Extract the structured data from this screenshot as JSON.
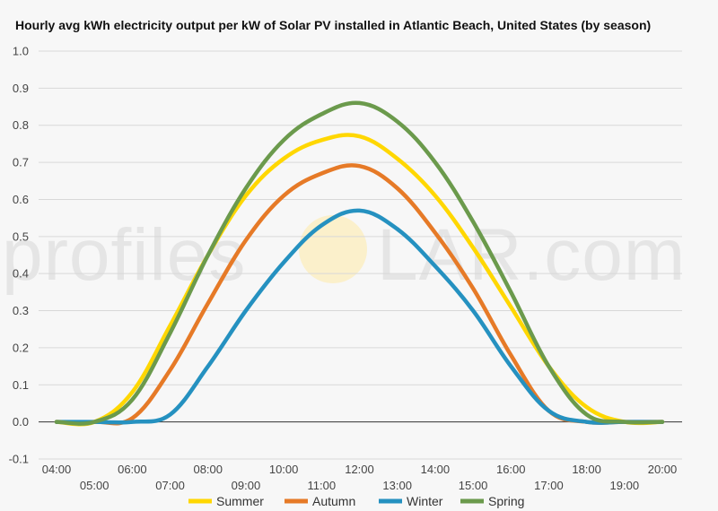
{
  "chart_data": {
    "type": "line",
    "title": "Hourly avg kWh electricity output per kW of Solar PV installed in Atlantic Beach, United States (by season)",
    "xlabel": "",
    "ylabel": "",
    "ylim": [
      -0.1,
      1.0
    ],
    "yticks": [
      "-0.1",
      "0.0",
      "0.1",
      "0.2",
      "0.3",
      "0.4",
      "0.5",
      "0.6",
      "0.7",
      "0.8",
      "0.9",
      "1.0"
    ],
    "x": [
      "04:00",
      "05:00",
      "06:00",
      "07:00",
      "08:00",
      "09:00",
      "10:00",
      "11:00",
      "12:00",
      "13:00",
      "14:00",
      "15:00",
      "16:00",
      "17:00",
      "18:00",
      "19:00",
      "20:00"
    ],
    "grid": true,
    "legend_position": "bottom",
    "series": [
      {
        "name": "Summer",
        "color": "#ffd700",
        "values": [
          0.0,
          0.0,
          0.08,
          0.26,
          0.45,
          0.61,
          0.71,
          0.76,
          0.77,
          0.71,
          0.61,
          0.47,
          0.31,
          0.15,
          0.04,
          0.0,
          0.0
        ]
      },
      {
        "name": "Autumn",
        "color": "#e67a27",
        "values": [
          0.0,
          0.0,
          0.01,
          0.14,
          0.32,
          0.49,
          0.61,
          0.67,
          0.69,
          0.63,
          0.51,
          0.36,
          0.18,
          0.03,
          0.0,
          0.0,
          0.0
        ]
      },
      {
        "name": "Winter",
        "color": "#2591c0",
        "values": [
          0.0,
          0.0,
          0.0,
          0.02,
          0.15,
          0.3,
          0.43,
          0.53,
          0.57,
          0.52,
          0.42,
          0.3,
          0.15,
          0.03,
          0.0,
          0.0,
          0.0
        ]
      },
      {
        "name": "Spring",
        "color": "#6b9a4c",
        "values": [
          0.0,
          0.0,
          0.06,
          0.24,
          0.45,
          0.63,
          0.76,
          0.83,
          0.86,
          0.81,
          0.7,
          0.54,
          0.35,
          0.15,
          0.02,
          0.0,
          0.0
        ]
      }
    ]
  },
  "watermark": {
    "text_left": "profiles",
    "text_right": "LAR.com",
    "sun_color": "#ffe9a0"
  }
}
